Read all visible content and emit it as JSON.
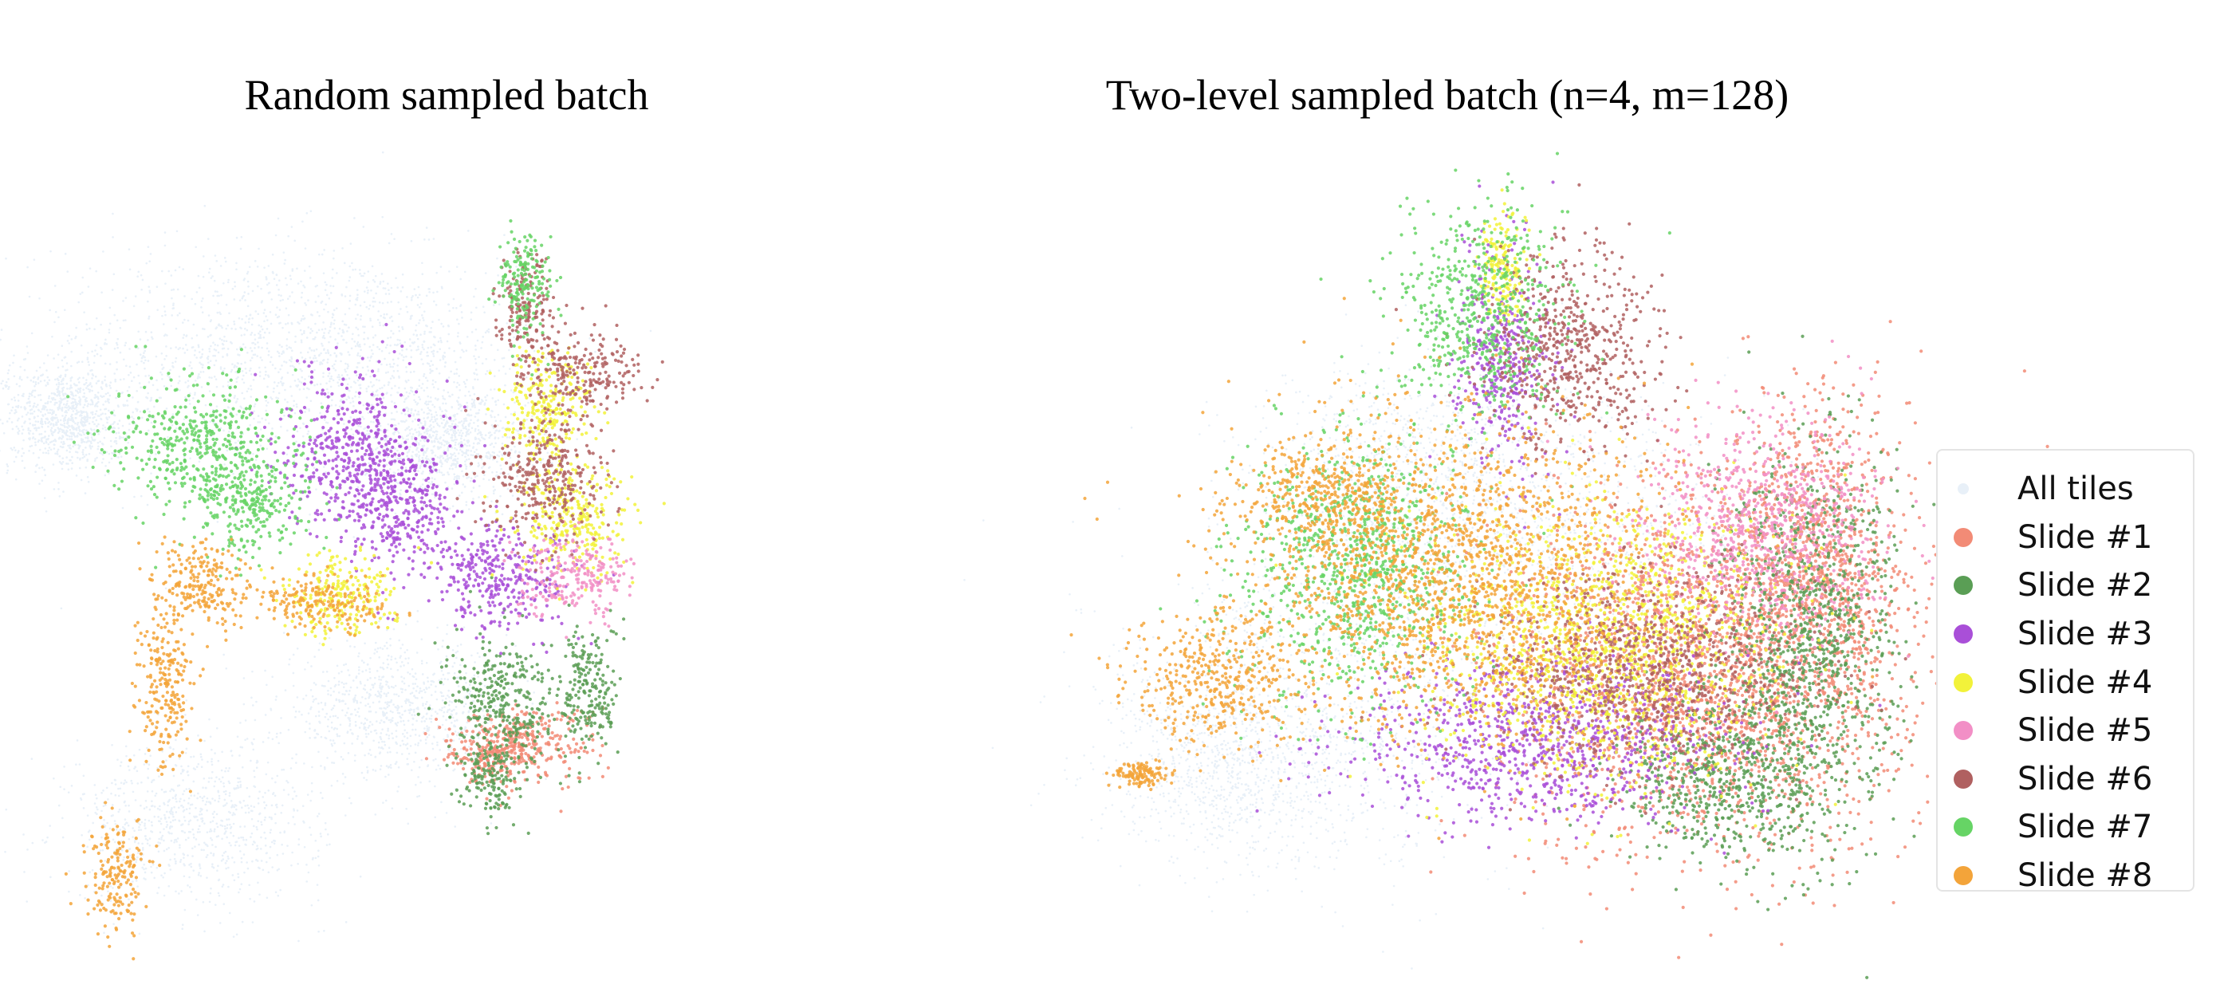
{
  "chart_data": [
    {
      "type": "scatter",
      "title": "Random sampled batch",
      "xlabel": "",
      "ylabel": "",
      "grid": false,
      "axes_visible": false,
      "clusters": {
        "Slide #1": [
          [
            7.1,
            2.5,
            0.5,
            0.3
          ],
          [
            6.6,
            2.3,
            0.3,
            0.2
          ]
        ],
        "Slide #2": [
          [
            8.0,
            3.3,
            0.2,
            0.5
          ],
          [
            6.8,
            3.1,
            0.4,
            0.5
          ],
          [
            6.6,
            2.0,
            0.2,
            0.3
          ]
        ],
        "Slide #3": [
          [
            5.4,
            6.0,
            0.4,
            0.5
          ],
          [
            4.7,
            6.9,
            0.5,
            0.6
          ],
          [
            6.8,
            5.0,
            0.5,
            0.4
          ]
        ],
        "Slide #4": [
          [
            7.4,
            7.5,
            0.3,
            0.5
          ],
          [
            4.5,
            4.7,
            0.4,
            0.3
          ],
          [
            7.8,
            5.8,
            0.4,
            0.4
          ]
        ],
        "Slide #5": [
          [
            7.8,
            5.0,
            0.4,
            0.3
          ]
        ],
        "Slide #6": [
          [
            7.9,
            8.1,
            0.4,
            0.3
          ],
          [
            7.1,
            9.0,
            0.2,
            0.4
          ],
          [
            7.4,
            6.5,
            0.4,
            0.5
          ]
        ],
        "Slide #7": [
          [
            3.3,
            6.1,
            0.4,
            0.35
          ],
          [
            2.6,
            7.0,
            0.6,
            0.5
          ],
          [
            7.1,
            9.4,
            0.2,
            0.4
          ]
        ],
        "Slide #8": [
          [
            2.1,
            3.5,
            0.2,
            0.7
          ],
          [
            2.6,
            4.9,
            0.3,
            0.3
          ],
          [
            1.4,
            0.5,
            0.2,
            0.4
          ],
          [
            4.2,
            4.6,
            0.5,
            0.2
          ]
        ]
      },
      "background_clusters": [
        [
          2.8,
          8.3,
          1.4,
          0.9
        ],
        [
          5.0,
          8.4,
          1.2,
          0.7
        ],
        [
          6.0,
          7.0,
          0.6,
          0.4
        ],
        [
          5.3,
          3.0,
          0.8,
          0.5
        ],
        [
          2.5,
          1.3,
          0.9,
          0.6
        ],
        [
          0.7,
          7.4,
          0.4,
          0.4
        ]
      ],
      "xlim": [
        0,
        10
      ],
      "ylim": [
        0,
        12
      ]
    },
    {
      "type": "scatter",
      "title": "Two-level sampled batch (n=4, m=128)",
      "xlabel": "",
      "ylabel": "",
      "grid": false,
      "axes_visible": false,
      "clusters": {
        "Slide #1": [
          [
            8.2,
            4.0,
            1.2,
            1.4
          ],
          [
            9.5,
            5.5,
            0.5,
            1.3
          ]
        ],
        "Slide #2": [
          [
            9.4,
            4.3,
            0.5,
            1.5
          ],
          [
            8.4,
            2.3,
            0.6,
            0.6
          ]
        ],
        "Slide #3": [
          [
            6.2,
            2.9,
            1.1,
            0.6
          ],
          [
            5.8,
            8.6,
            0.3,
            0.8
          ]
        ],
        "Slide #4": [
          [
            7.0,
            4.4,
            1.0,
            1.0
          ],
          [
            5.8,
            10.0,
            0.15,
            0.4
          ]
        ],
        "Slide #5": [
          [
            8.9,
            6.1,
            0.7,
            0.8
          ]
        ],
        "Slide #6": [
          [
            6.6,
            8.8,
            0.5,
            0.8
          ],
          [
            7.5,
            3.9,
            0.9,
            0.7
          ]
        ],
        "Slide #7": [
          [
            5.6,
            9.3,
            0.5,
            0.8
          ],
          [
            4.1,
            5.5,
            0.7,
            1.0
          ]
        ],
        "Slide #8": [
          [
            3.6,
            6.6,
            0.5,
            0.4
          ],
          [
            5.2,
            5.4,
            1.2,
            1.2
          ],
          [
            2.4,
            3.8,
            0.5,
            0.5
          ],
          [
            1.5,
            2.4,
            0.15,
            0.1
          ]
        ]
      },
      "background_clusters": [
        [
          3.8,
          3.5,
          1.2,
          1.3
        ],
        [
          4.6,
          6.7,
          0.9,
          0.9
        ],
        [
          2.6,
          2.5,
          0.8,
          0.7
        ],
        [
          6.2,
          6.2,
          1.2,
          1.0
        ]
      ],
      "xlim": [
        0,
        10
      ],
      "ylim": [
        0,
        12
      ]
    }
  ],
  "legend": {
    "placement": "right",
    "entries": [
      {
        "label": "All tiles",
        "color": "#e8f0f8"
      },
      {
        "label": "Slide #1",
        "color": "#f28b76"
      },
      {
        "label": "Slide #2",
        "color": "#5a9e55"
      },
      {
        "label": "Slide #3",
        "color": "#a94fd8"
      },
      {
        "label": "Slide #4",
        "color": "#f2f23a"
      },
      {
        "label": "Slide #5",
        "color": "#f28fc6"
      },
      {
        "label": "Slide #6",
        "color": "#b06060"
      },
      {
        "label": "Slide #7",
        "color": "#66d465"
      },
      {
        "label": "Slide #8",
        "color": "#f3a43a"
      }
    ]
  }
}
